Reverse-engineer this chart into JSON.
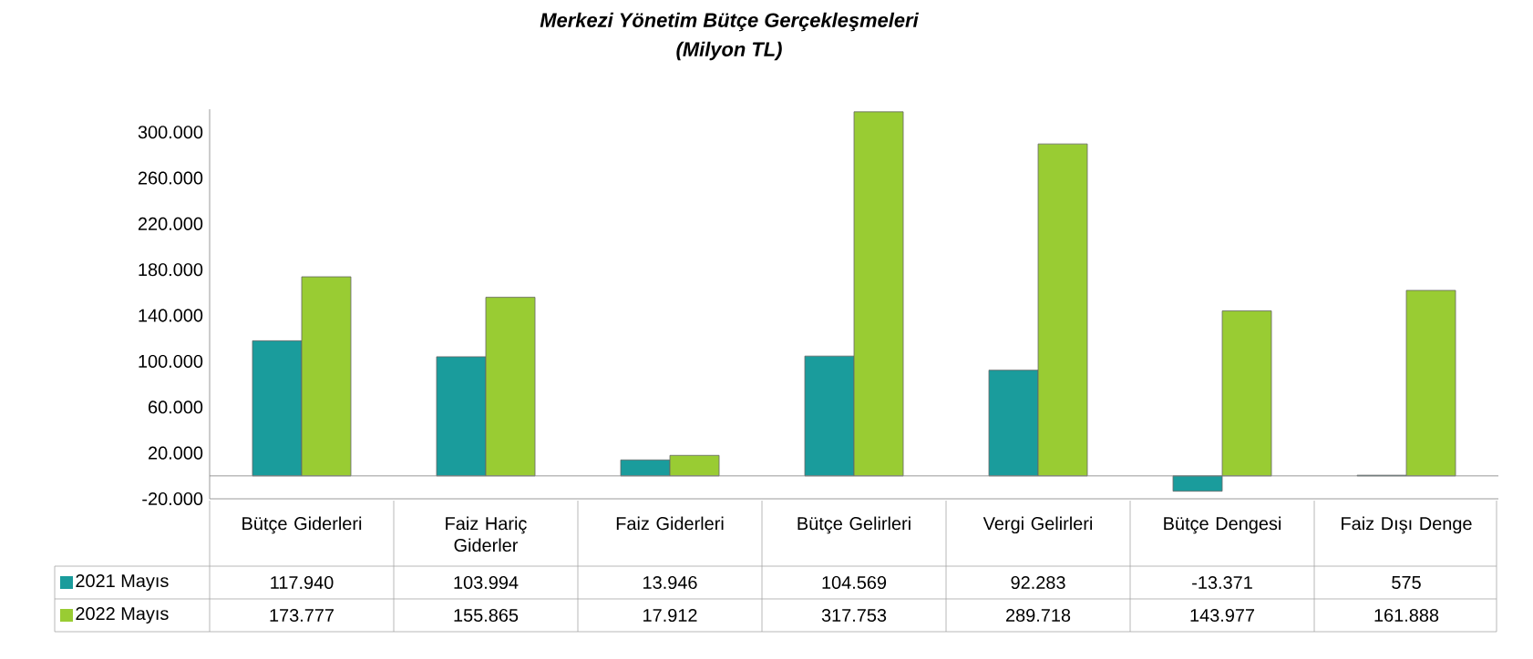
{
  "chart_data": {
    "type": "bar",
    "title": "Merkezi Yönetim Bütçe Gerçekleşmeleri",
    "subtitle": "(Milyon TL)",
    "categories": [
      "Bütçe Giderleri",
      "Faiz Hariç Giderler",
      "Faiz Giderleri",
      "Bütçe Gelirleri",
      "Vergi Gelirleri",
      "Bütçe Dengesi",
      "Faiz Dışı Denge"
    ],
    "series": [
      {
        "name": "2021  Mayıs",
        "color": "#1a9c9c",
        "values": [
          117940,
          103994,
          13946,
          104569,
          92283,
          -13371,
          575
        ],
        "value_labels": [
          "117.940",
          "103.994",
          "13.946",
          "104.569",
          "92.283",
          "-13.371",
          "575"
        ]
      },
      {
        "name": "2022  Mayıs",
        "color": "#99cc33",
        "values": [
          173777,
          155865,
          17912,
          317753,
          289718,
          143977,
          161888
        ],
        "value_labels": [
          "173.777",
          "155.865",
          "17.912",
          "317.753",
          "289.718",
          "143.977",
          "161.888"
        ]
      }
    ],
    "ylim": [
      -20000,
      320000
    ],
    "legend": "bottom left",
    "yticks": [
      {
        "value": -20000,
        "label": "-20.000"
      },
      {
        "value": 20000,
        "label": "20.000"
      },
      {
        "value": 60000,
        "label": "60.000"
      },
      {
        "value": 100000,
        "label": "100.000"
      },
      {
        "value": 140000,
        "label": "140.000"
      },
      {
        "value": 180000,
        "label": "180.000"
      },
      {
        "value": 220000,
        "label": "220.000"
      },
      {
        "value": 260000,
        "label": "260.000"
      },
      {
        "value": 300000,
        "label": "300.000"
      }
    ]
  }
}
